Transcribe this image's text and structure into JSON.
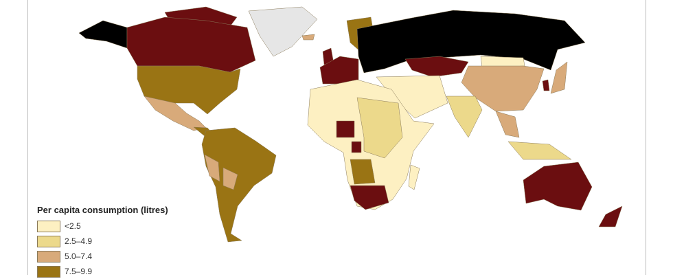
{
  "legend": {
    "title": "Per capita consumption (litres)",
    "items": [
      {
        "label": "<2.5",
        "color": "#fdf0c2"
      },
      {
        "label": "2.5–4.9",
        "color": "#ecd98b"
      },
      {
        "label": "5.0–7.4",
        "color": "#d8aa7a"
      },
      {
        "label": "7.5–9.9",
        "color": "#9a7414"
      }
    ]
  },
  "map_colors": {
    "cat0": "#fdf0c2",
    "cat1": "#ecd98b",
    "cat2": "#d8aa7a",
    "cat3": "#9a7414",
    "cat4": "#6b0e10",
    "cat5": "#000000",
    "nodata": "#e6e6e6"
  }
}
